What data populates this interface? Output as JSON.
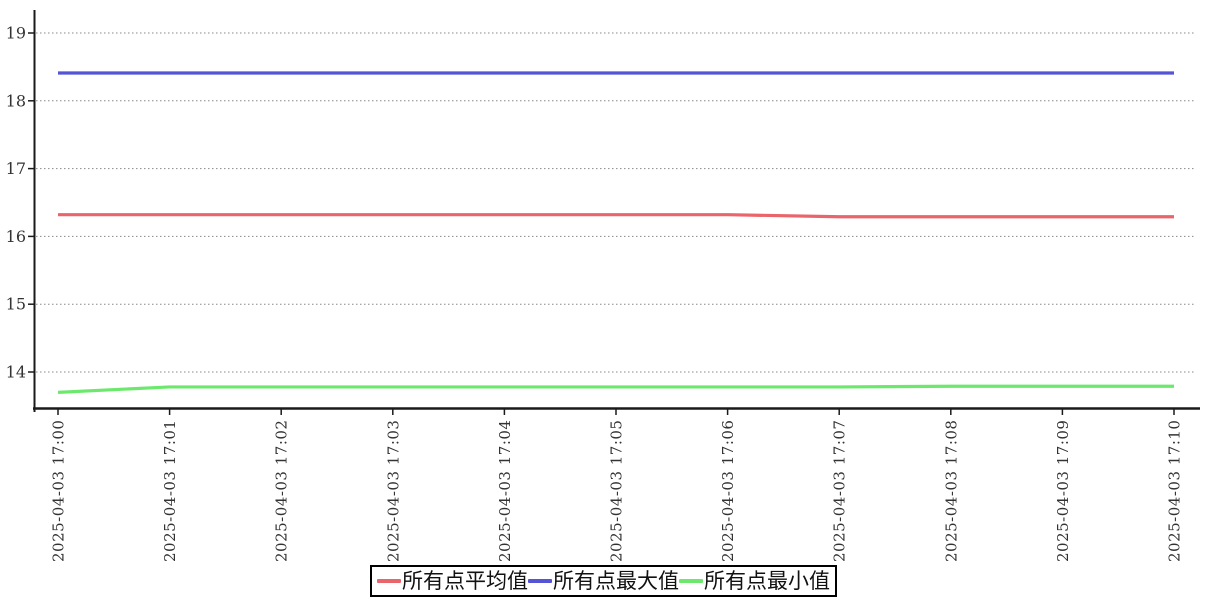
{
  "chart_data": {
    "type": "line",
    "title": "",
    "xlabel": "",
    "ylabel": "",
    "x": [
      "2025-04-03 17:00",
      "2025-04-03 17:01",
      "2025-04-03 17:02",
      "2025-04-03 17:03",
      "2025-04-03 17:04",
      "2025-04-03 17:05",
      "2025-04-03 17:06",
      "2025-04-03 17:07",
      "2025-04-03 17:08",
      "2025-04-03 17:09",
      "2025-04-03 17:10"
    ],
    "series": [
      {
        "name": "所有点平均值",
        "color": "#e9646b",
        "values": [
          16.32,
          16.32,
          16.32,
          16.32,
          16.32,
          16.32,
          16.32,
          16.29,
          16.29,
          16.29,
          16.29
        ]
      },
      {
        "name": "所有点最大值",
        "color": "#5553d6",
        "values": [
          18.41,
          18.41,
          18.41,
          18.41,
          18.41,
          18.41,
          18.41,
          18.41,
          18.41,
          18.41,
          18.41
        ]
      },
      {
        "name": "所有点最小值",
        "color": "#6ce96c",
        "values": [
          13.7,
          13.78,
          13.78,
          13.78,
          13.78,
          13.78,
          13.78,
          13.78,
          13.79,
          13.79,
          13.79
        ]
      }
    ],
    "yticks": [
      14,
      15,
      16,
      17,
      18,
      19
    ],
    "ylim": [
      13.45,
      19.35
    ],
    "grid": "horizontal-dotted",
    "legend_position": "bottom-center",
    "colors": {
      "axis": "#1a1a1a",
      "grid": "#888888",
      "tick_label": "#333333",
      "legend_border": "#000000",
      "background": "#ffffff"
    }
  }
}
